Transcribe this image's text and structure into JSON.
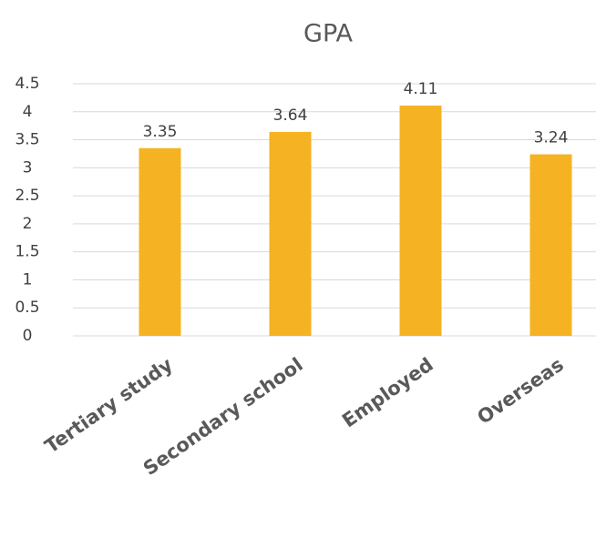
{
  "chart_data": {
    "type": "bar",
    "title": "GPA",
    "categories": [
      "Tertiary study",
      "Secondary school",
      "Employed",
      "Overseas"
    ],
    "values": [
      3.35,
      3.64,
      4.11,
      3.24
    ],
    "color": "#f5b222",
    "ylim": [
      0,
      4.5
    ],
    "yticks": [
      0,
      0.5,
      1,
      1.5,
      2,
      2.5,
      3,
      3.5,
      4,
      4.5
    ],
    "grid": true
  }
}
